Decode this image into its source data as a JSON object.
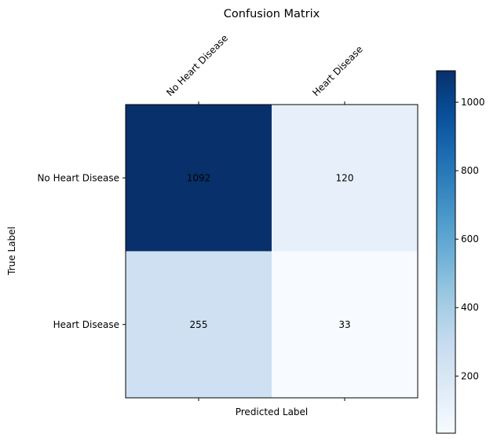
{
  "chart_data": {
    "type": "heatmap",
    "title": "Confusion Matrix",
    "xlabel": "Predicted Label",
    "ylabel": "True Label",
    "x_categories": [
      "No Heart Disease",
      "Heart Disease"
    ],
    "y_categories": [
      "No Heart Disease",
      "Heart Disease"
    ],
    "values": [
      [
        1092,
        120
      ],
      [
        255,
        33
      ]
    ],
    "colormap": "Blues",
    "colorbar": {
      "ticks": [
        200,
        400,
        600,
        800,
        1000
      ],
      "tick_labels": [
        "200",
        "400",
        "600",
        "800",
        "1000"
      ],
      "range": [
        33,
        1092
      ]
    },
    "cell_text_color": "#000000"
  }
}
